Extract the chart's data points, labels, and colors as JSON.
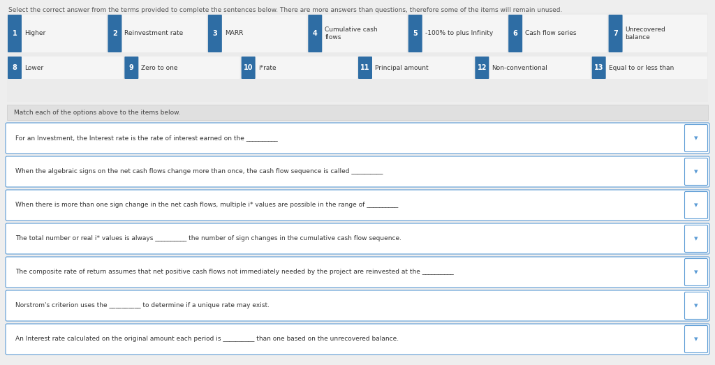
{
  "title_text": "Select the correct answer from the terms provided to complete the sentences below. There are more answers than questions, therefore some of the items will remain unused.",
  "bg_color": "#eeeeee",
  "card_bg": "#f5f5f5",
  "white": "#ffffff",
  "blue_badge": "#2e6da4",
  "border_color": "#5b9bd5",
  "text_color": "#333333",
  "row1_items": [
    {
      "num": "1",
      "label": "Higher"
    },
    {
      "num": "2",
      "label": "Reinvestment rate"
    },
    {
      "num": "3",
      "label": "MARR"
    },
    {
      "num": "4",
      "label": "Cumulative cash\nflows"
    },
    {
      "num": "5",
      "label": "-100% to plus Infinity"
    },
    {
      "num": "6",
      "label": "Cash flow series"
    },
    {
      "num": "7",
      "label": "Unrecovered\nbalance"
    }
  ],
  "row2_items": [
    {
      "num": "8",
      "label": "Lower"
    },
    {
      "num": "9",
      "label": "Zero to one"
    },
    {
      "num": "10",
      "label": "i*rate"
    },
    {
      "num": "11",
      "label": "Principal amount"
    },
    {
      "num": "12",
      "label": "Non-conventional"
    },
    {
      "num": "13",
      "label": "Equal to or less than"
    }
  ],
  "match_header": "Match each of the options above to the items below.",
  "questions": [
    "For an Investment, the Interest rate is the rate of interest earned on the __________",
    "When the algebraic signs on the net cash flows change more than once, the cash flow sequence is called __________",
    "When there is more than one sign change in the net cash flows, multiple i* values are possible in the range of __________",
    "The total number or real i* values is always __________ the number of sign changes in the cumulative cash flow sequence.",
    "The composite rate of return assumes that net positive cash flows not immediately needed by the project are reinvested at the __________",
    "Norstrom's criterion uses the __________ to determine if a unique rate may exist.",
    "An Interest rate calculated on the original amount each period is __________ than one based on the unrecovered balance."
  ]
}
